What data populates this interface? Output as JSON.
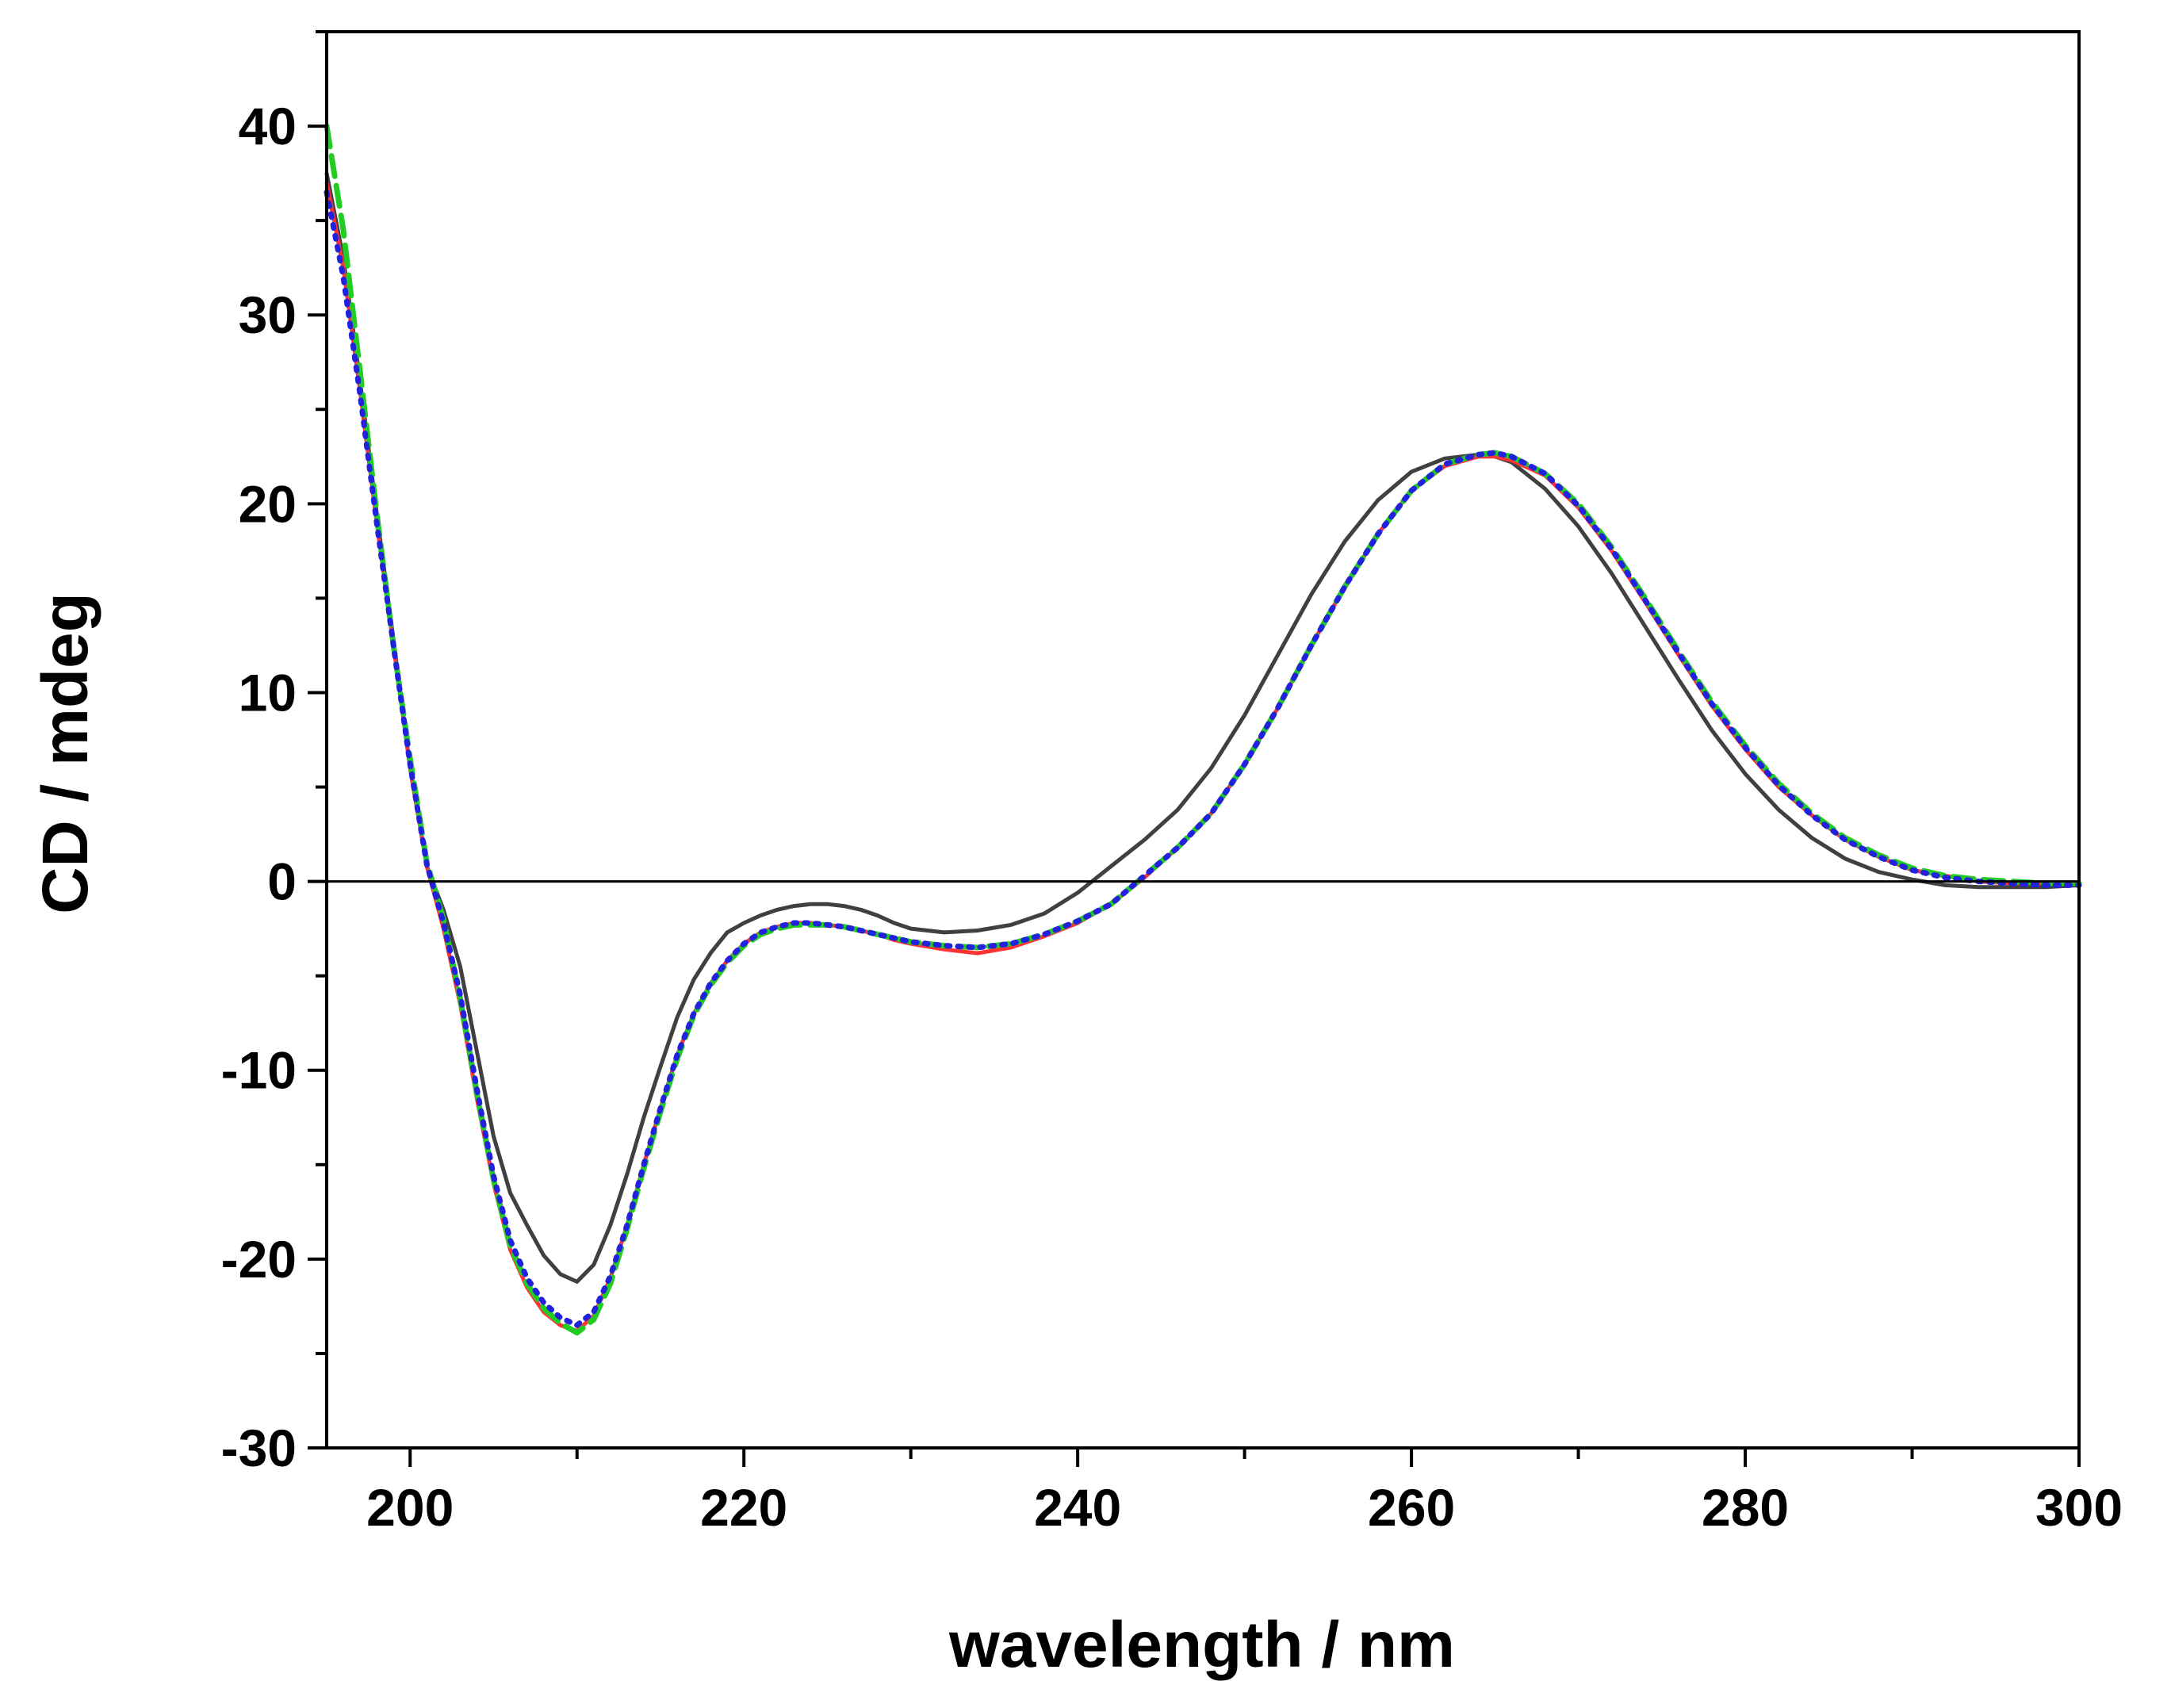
{
  "chart_data": {
    "type": "line",
    "title": "",
    "xlabel": "wavelength / nm",
    "ylabel": "CD / mdeg",
    "xlim": [
      195,
      300
    ],
    "ylim": [
      -30,
      45
    ],
    "xticks": [
      200,
      220,
      240,
      260,
      280,
      300
    ],
    "xtick_labels": [
      "200",
      "220",
      "240",
      "260",
      "280",
      "300"
    ],
    "yticks": [
      -30,
      -20,
      -10,
      0,
      10,
      20,
      30,
      40
    ],
    "ytick_labels": [
      "-30",
      "-20",
      "-10",
      "0",
      "10",
      "20",
      "30",
      "40"
    ],
    "grid": false,
    "legend": "none",
    "zero_line": true,
    "series": [
      {
        "color": "#404040",
        "style": "solid",
        "x": [
          195,
          196,
          197,
          198,
          199,
          200,
          201,
          202,
          203,
          204,
          205,
          206,
          207,
          208,
          209,
          210,
          211,
          212,
          213,
          214,
          215,
          216,
          217,
          218,
          219,
          220,
          221,
          222,
          223,
          224,
          225,
          226,
          227,
          228,
          229,
          230,
          232,
          234,
          236,
          238,
          240,
          242,
          244,
          246,
          248,
          250,
          252,
          254,
          256,
          258,
          260,
          262,
          264,
          265,
          266,
          268,
          270,
          272,
          274,
          276,
          278,
          280,
          282,
          284,
          286,
          288,
          290,
          292,
          294,
          296,
          298,
          300
        ],
        "y": [
          37.5,
          33.0,
          26.5,
          19.5,
          12.8,
          6.0,
          0.8,
          -1.5,
          -4.5,
          -9.0,
          -13.5,
          -16.5,
          -18.2,
          -19.8,
          -20.8,
          -21.2,
          -20.3,
          -18.2,
          -15.5,
          -12.5,
          -9.8,
          -7.2,
          -5.2,
          -3.8,
          -2.7,
          -2.2,
          -1.8,
          -1.5,
          -1.3,
          -1.2,
          -1.2,
          -1.3,
          -1.5,
          -1.8,
          -2.2,
          -2.5,
          -2.7,
          -2.6,
          -2.3,
          -1.7,
          -0.6,
          0.8,
          2.2,
          3.8,
          6.0,
          8.8,
          12.0,
          15.2,
          18.0,
          20.2,
          21.7,
          22.4,
          22.6,
          22.5,
          22.2,
          20.8,
          18.8,
          16.3,
          13.5,
          10.7,
          8.0,
          5.7,
          3.8,
          2.3,
          1.2,
          0.5,
          0.1,
          -0.2,
          -0.3,
          -0.3,
          -0.3,
          -0.2
        ]
      },
      {
        "color": "#ff3333",
        "style": "solid",
        "x": [
          195,
          196,
          197,
          198,
          199,
          200,
          201,
          202,
          203,
          204,
          205,
          206,
          207,
          208,
          209,
          210,
          211,
          212,
          213,
          214,
          215,
          216,
          217,
          218,
          219,
          220,
          221,
          222,
          223,
          224,
          225,
          226,
          227,
          228,
          229,
          230,
          232,
          234,
          236,
          238,
          240,
          242,
          244,
          246,
          248,
          250,
          252,
          254,
          256,
          258,
          260,
          262,
          264,
          265,
          266,
          268,
          270,
          272,
          274,
          276,
          278,
          280,
          282,
          284,
          286,
          288,
          290,
          292,
          294,
          296,
          298,
          300
        ],
        "y": [
          37.0,
          32.5,
          26.0,
          19.0,
          12.5,
          6.0,
          0.8,
          -2.5,
          -6.5,
          -11.5,
          -16.0,
          -19.5,
          -21.5,
          -22.8,
          -23.5,
          -23.8,
          -23.0,
          -21.0,
          -18.2,
          -15.0,
          -12.0,
          -9.2,
          -7.0,
          -5.4,
          -4.2,
          -3.3,
          -2.7,
          -2.4,
          -2.2,
          -2.2,
          -2.3,
          -2.4,
          -2.6,
          -2.8,
          -3.1,
          -3.3,
          -3.6,
          -3.8,
          -3.5,
          -2.9,
          -2.2,
          -1.2,
          0.2,
          1.8,
          3.6,
          6.2,
          9.2,
          12.5,
          15.6,
          18.4,
          20.7,
          22.0,
          22.5,
          22.5,
          22.3,
          21.5,
          19.8,
          17.5,
          14.8,
          12.0,
          9.3,
          7.0,
          5.0,
          3.5,
          2.2,
          1.3,
          0.6,
          0.3,
          0.0,
          -0.1,
          -0.1,
          -0.1
        ]
      },
      {
        "color": "#22cc22",
        "style": "dash",
        "x": [
          195,
          196,
          197,
          198,
          199,
          200,
          201,
          202,
          203,
          204,
          205,
          206,
          207,
          208,
          209,
          210,
          211,
          212,
          213,
          214,
          215,
          216,
          217,
          218,
          219,
          220,
          221,
          222,
          223,
          224,
          225,
          226,
          227,
          228,
          229,
          230,
          232,
          234,
          236,
          238,
          240,
          242,
          244,
          246,
          248,
          250,
          252,
          254,
          256,
          258,
          260,
          262,
          264,
          265,
          266,
          268,
          270,
          272,
          274,
          276,
          278,
          280,
          282,
          284,
          286,
          288,
          290,
          292,
          294,
          296,
          298,
          300
        ],
        "y": [
          40.0,
          34.5,
          27.0,
          19.5,
          12.5,
          6.5,
          1.0,
          -2.0,
          -6.2,
          -11.2,
          -15.8,
          -19.3,
          -21.3,
          -22.6,
          -23.4,
          -23.9,
          -23.2,
          -21.3,
          -18.4,
          -15.2,
          -12.2,
          -9.4,
          -7.1,
          -5.5,
          -4.3,
          -3.4,
          -2.8,
          -2.5,
          -2.3,
          -2.3,
          -2.3,
          -2.4,
          -2.6,
          -2.8,
          -3.0,
          -3.2,
          -3.4,
          -3.5,
          -3.3,
          -2.8,
          -2.1,
          -1.2,
          0.3,
          1.8,
          3.6,
          6.2,
          9.2,
          12.5,
          15.6,
          18.4,
          20.7,
          22.1,
          22.6,
          22.7,
          22.5,
          21.6,
          20.0,
          17.7,
          15.0,
          12.2,
          9.5,
          7.2,
          5.2,
          3.6,
          2.3,
          1.4,
          0.7,
          0.3,
          0.1,
          0.0,
          -0.1,
          -0.1
        ]
      },
      {
        "color": "#2222dd",
        "style": "dot",
        "x": [
          195,
          196,
          197,
          198,
          199,
          200,
          201,
          202,
          203,
          204,
          205,
          206,
          207,
          208,
          209,
          210,
          211,
          212,
          213,
          214,
          215,
          216,
          217,
          218,
          219,
          220,
          221,
          222,
          223,
          224,
          225,
          226,
          227,
          228,
          229,
          230,
          232,
          234,
          236,
          238,
          240,
          242,
          244,
          246,
          248,
          250,
          252,
          254,
          256,
          258,
          260,
          262,
          264,
          265,
          266,
          268,
          270,
          272,
          274,
          276,
          278,
          280,
          282,
          284,
          286,
          288,
          290,
          292,
          294,
          296,
          298,
          300
        ],
        "y": [
          36.5,
          32.0,
          25.8,
          19.0,
          12.5,
          6.2,
          0.9,
          -2.2,
          -6.0,
          -11.0,
          -15.6,
          -19.0,
          -21.0,
          -22.3,
          -23.1,
          -23.5,
          -22.8,
          -20.9,
          -18.2,
          -15.0,
          -12.0,
          -9.2,
          -7.0,
          -5.4,
          -4.2,
          -3.3,
          -2.7,
          -2.4,
          -2.2,
          -2.2,
          -2.3,
          -2.4,
          -2.6,
          -2.8,
          -3.0,
          -3.2,
          -3.4,
          -3.5,
          -3.3,
          -2.8,
          -2.1,
          -1.2,
          0.3,
          1.8,
          3.6,
          6.2,
          9.2,
          12.5,
          15.6,
          18.4,
          20.7,
          22.1,
          22.6,
          22.7,
          22.5,
          21.6,
          19.9,
          17.6,
          14.9,
          12.1,
          9.4,
          7.1,
          5.1,
          3.5,
          2.2,
          1.3,
          0.6,
          0.2,
          0.0,
          -0.1,
          -0.2,
          -0.2
        ]
      }
    ]
  }
}
